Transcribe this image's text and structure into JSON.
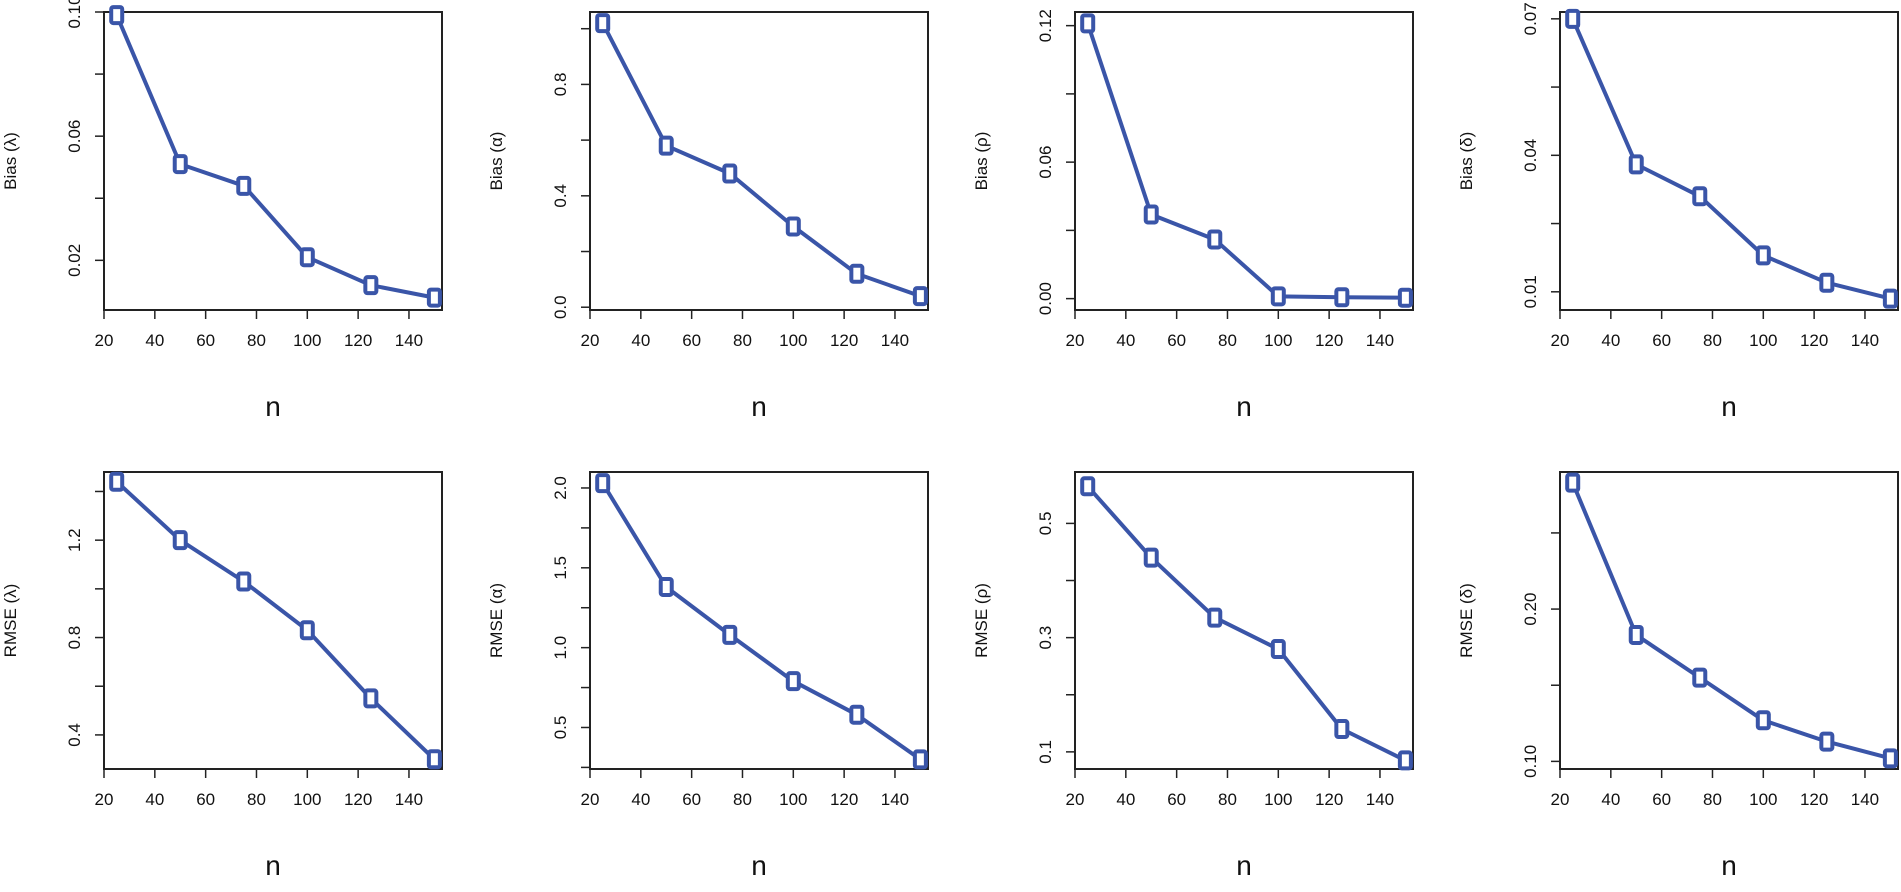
{
  "colors": {
    "series": "#3a55a8",
    "axis": "#222222",
    "background": "#ffffff"
  },
  "chart_data": [
    {
      "type": "line",
      "marker": "rounded-square",
      "x": [
        25,
        50,
        75,
        100,
        125,
        150
      ],
      "values": [
        0.099,
        0.051,
        0.044,
        0.021,
        0.012,
        0.008
      ],
      "xlabel": "n",
      "ylabel": "Bias (λ)",
      "xlim": [
        20,
        153
      ],
      "ylim": [
        0.004,
        0.1
      ],
      "xticks": [
        20,
        40,
        60,
        80,
        100,
        120,
        140
      ],
      "yticks": [
        0.02,
        0.06,
        0.1
      ],
      "yticklabels": [
        "0.02",
        "0.06",
        "0.10"
      ]
    },
    {
      "type": "line",
      "marker": "rounded-square",
      "x": [
        25,
        50,
        75,
        100,
        125,
        150
      ],
      "values": [
        1.02,
        0.58,
        0.48,
        0.29,
        0.12,
        0.04
      ],
      "xlabel": "n",
      "ylabel": "Bias (α)",
      "xlim": [
        20,
        153
      ],
      "ylim": [
        -0.01,
        1.06
      ],
      "xticks": [
        20,
        40,
        60,
        80,
        100,
        120,
        140
      ],
      "yticks": [
        0.0,
        0.4,
        0.8
      ],
      "yticklabels": [
        "0.0",
        "0.4",
        "0.8"
      ]
    },
    {
      "type": "line",
      "marker": "rounded-square",
      "x": [
        25,
        50,
        75,
        100,
        125,
        150
      ],
      "values": [
        0.121,
        0.037,
        0.026,
        0.001,
        0.0006,
        0.0004
      ],
      "xlabel": "n",
      "ylabel": "Bias (ρ)",
      "xlim": [
        20,
        153
      ],
      "ylim": [
        -0.005,
        0.126
      ],
      "xticks": [
        20,
        40,
        60,
        80,
        100,
        120,
        140
      ],
      "yticks": [
        0.0,
        0.06,
        0.12
      ],
      "yticklabels": [
        "0.00",
        "0.06",
        "0.12"
      ]
    },
    {
      "type": "line",
      "marker": "rounded-square",
      "x": [
        25,
        50,
        75,
        100,
        125,
        150
      ],
      "values": [
        0.07,
        0.038,
        0.031,
        0.018,
        0.012,
        0.0085
      ],
      "xlabel": "n",
      "ylabel": "Bias (δ)",
      "xlim": [
        20,
        153
      ],
      "ylim": [
        0.006,
        0.0715
      ],
      "xticks": [
        20,
        40,
        60,
        80,
        100,
        120,
        140
      ],
      "yticks": [
        0.01,
        0.04,
        0.07
      ],
      "yticklabels": [
        "0.01",
        "0.04",
        "0.07"
      ]
    },
    {
      "type": "line",
      "marker": "rounded-square",
      "x": [
        25,
        50,
        75,
        100,
        125,
        150
      ],
      "values": [
        1.44,
        1.2,
        1.03,
        0.83,
        0.55,
        0.3
      ],
      "xlabel": "n",
      "ylabel": "RMSE (λ)",
      "xlim": [
        20,
        153
      ],
      "ylim": [
        0.26,
        1.48
      ],
      "xticks": [
        20,
        40,
        60,
        80,
        100,
        120,
        140
      ],
      "yticks": [
        0.4,
        0.8,
        1.2
      ],
      "yticklabels": [
        "0.4",
        "0.8",
        "1.2"
      ]
    },
    {
      "type": "line",
      "marker": "rounded-square",
      "x": [
        25,
        50,
        75,
        100,
        125,
        150
      ],
      "values": [
        2.03,
        1.38,
        1.08,
        0.79,
        0.58,
        0.3
      ],
      "xlabel": "n",
      "ylabel": "RMSE (α)",
      "xlim": [
        20,
        153
      ],
      "ylim": [
        0.24,
        2.1
      ],
      "xticks": [
        20,
        40,
        60,
        80,
        100,
        120,
        140
      ],
      "yticks": [
        0.5,
        1.0,
        1.5,
        2.0
      ],
      "yticklabels": [
        "0.5",
        "1.0",
        "1.5",
        "2.0"
      ]
    },
    {
      "type": "line",
      "marker": "rounded-square",
      "x": [
        25,
        50,
        75,
        100,
        125,
        150
      ],
      "values": [
        0.565,
        0.44,
        0.335,
        0.28,
        0.14,
        0.085
      ],
      "xlabel": "n",
      "ylabel": "RMSE (ρ)",
      "xlim": [
        20,
        153
      ],
      "ylim": [
        0.07,
        0.59
      ],
      "xticks": [
        20,
        40,
        60,
        80,
        100,
        120,
        140
      ],
      "yticks": [
        0.1,
        0.3,
        0.5
      ],
      "yticklabels": [
        "0.1",
        "0.3",
        "0.5"
      ]
    },
    {
      "type": "line",
      "marker": "rounded-square",
      "x": [
        25,
        50,
        75,
        100,
        125,
        150
      ],
      "values": [
        0.283,
        0.183,
        0.155,
        0.127,
        0.113,
        0.102
      ],
      "xlabel": "n",
      "ylabel": "RMSE (δ)",
      "xlim": [
        20,
        153
      ],
      "ylim": [
        0.095,
        0.29
      ],
      "xticks": [
        20,
        40,
        60,
        80,
        100,
        120,
        140
      ],
      "yticks": [
        0.1,
        0.2
      ],
      "yticklabels": [
        "0.10",
        "0.20"
      ]
    }
  ]
}
